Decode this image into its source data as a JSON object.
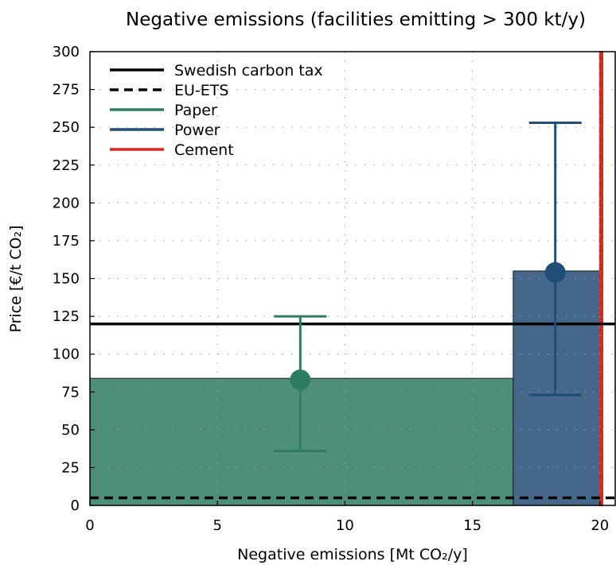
{
  "chart_data": {
    "type": "bar",
    "title": "Negative emissions (facilities emitting > 300 kt/y)",
    "xlabel": "Negative emissions [Mt CO₂/y]",
    "ylabel": "Price [€/t CO₂]",
    "xlim": [
      0,
      20.6
    ],
    "ylim": [
      0,
      300
    ],
    "x_ticks": [
      "0",
      "5",
      "10",
      "15",
      "20"
    ],
    "y_ticks": [
      "0",
      "25",
      "50",
      "75",
      "100",
      "125",
      "150",
      "175",
      "200",
      "225",
      "250",
      "275",
      "300"
    ],
    "grid": true,
    "legend_position": "top-left",
    "bars": [
      {
        "name": "Paper",
        "x_start": 0,
        "x_end": 16.6,
        "value": 84,
        "color": "#4e8f78",
        "point_x": 8.25,
        "point_y": 83,
        "err_low": 36,
        "err_high": 125
      },
      {
        "name": "Power",
        "x_start": 16.6,
        "x_end": 20.0,
        "value": 155,
        "color": "#45678a",
        "point_x": 18.25,
        "point_y": 154,
        "err_low": 73,
        "err_high": 253
      },
      {
        "name": "Cement",
        "x_start": 20.0,
        "x_end": 20.1,
        "value": 300,
        "color": "#d42a1e"
      }
    ],
    "reference_lines": [
      {
        "name": "Swedish carbon tax",
        "value": 120,
        "style": "solid",
        "color": "#000000"
      },
      {
        "name": "EU-ETS",
        "value": 5,
        "style": "dashed",
        "color": "#000000"
      }
    ],
    "series": [
      {
        "name": "Swedish carbon tax",
        "color": "#000000",
        "style": "solid"
      },
      {
        "name": "EU-ETS",
        "color": "#000000",
        "style": "dashed"
      },
      {
        "name": "Paper",
        "color": "#2e7d62",
        "style": "solid"
      },
      {
        "name": "Power",
        "color": "#1f4e79",
        "style": "solid"
      },
      {
        "name": "Cement",
        "color": "#d42a1e",
        "style": "solid"
      }
    ],
    "marker_colors": {
      "Paper": "#2e7d62",
      "Power": "#1f4e79"
    }
  }
}
